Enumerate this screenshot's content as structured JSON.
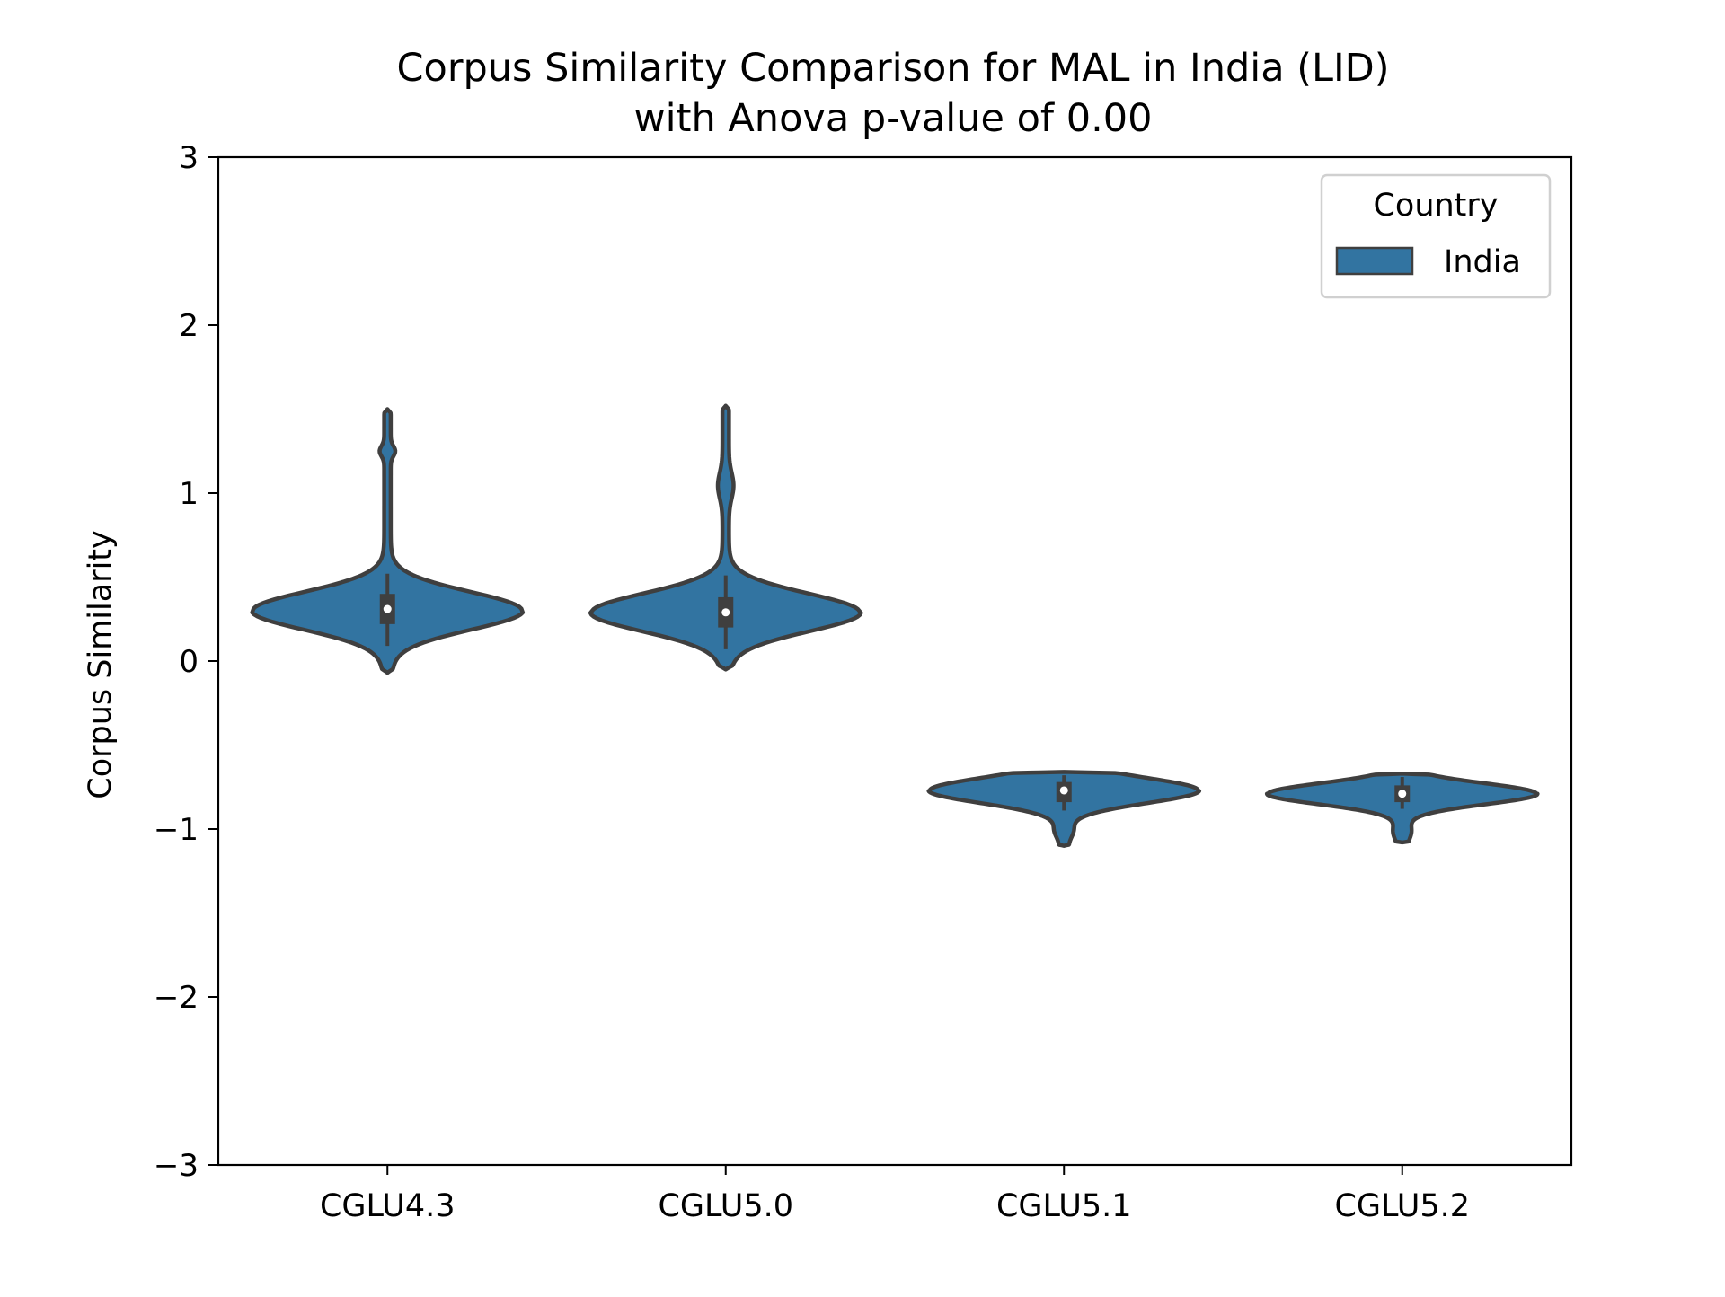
{
  "chart_data": {
    "type": "violin",
    "title_line1": "Corpus Similarity Comparison for MAL in India (LID)",
    "title_line2": "with Anova p-value of 0.00",
    "xlabel": "",
    "ylabel": "Corpus Similarity",
    "ylim": [
      -3,
      3
    ],
    "yticks": [
      3,
      2,
      1,
      0,
      -1,
      -2,
      -3
    ],
    "ytick_labels": [
      "3",
      "2",
      "1",
      "0",
      "−1",
      "−2",
      "−3"
    ],
    "categories": [
      "CGLU4.3",
      "CGLU5.0",
      "CGLU5.1",
      "CGLU5.2"
    ],
    "legend": {
      "title": "Country",
      "entries": [
        "India"
      ],
      "placement": "top-right"
    },
    "grid": false,
    "series": [
      {
        "name": "India",
        "color": "#3274a1",
        "violins": [
          {
            "category": "CGLU4.3",
            "min": -0.07,
            "max": 1.5,
            "q1": 0.22,
            "median": 0.31,
            "q3": 0.4,
            "whisker_low": 0.09,
            "whisker_high": 0.52,
            "peak": 0.3,
            "bulge": [
              1.22,
              1.28
            ]
          },
          {
            "category": "CGLU5.0",
            "min": -0.05,
            "max": 1.52,
            "q1": 0.2,
            "median": 0.29,
            "q3": 0.38,
            "whisker_low": 0.07,
            "whisker_high": 0.51,
            "peak": 0.29,
            "bulge": [
              0.97,
              1.12
            ]
          },
          {
            "category": "CGLU5.1",
            "min": -1.1,
            "max": -0.66,
            "q1": -0.84,
            "median": -0.77,
            "q3": -0.72,
            "whisker_low": -0.89,
            "whisker_high": -0.68,
            "peak": -0.77,
            "bulge": [
              -1.05,
              -0.97
            ]
          },
          {
            "category": "CGLU5.2",
            "min": -1.08,
            "max": -0.67,
            "q1": -0.84,
            "median": -0.79,
            "q3": -0.74,
            "whisker_low": -0.88,
            "whisker_high": -0.69,
            "peak": -0.79,
            "bulge": [
              -1.06,
              -0.97
            ]
          }
        ]
      }
    ]
  }
}
